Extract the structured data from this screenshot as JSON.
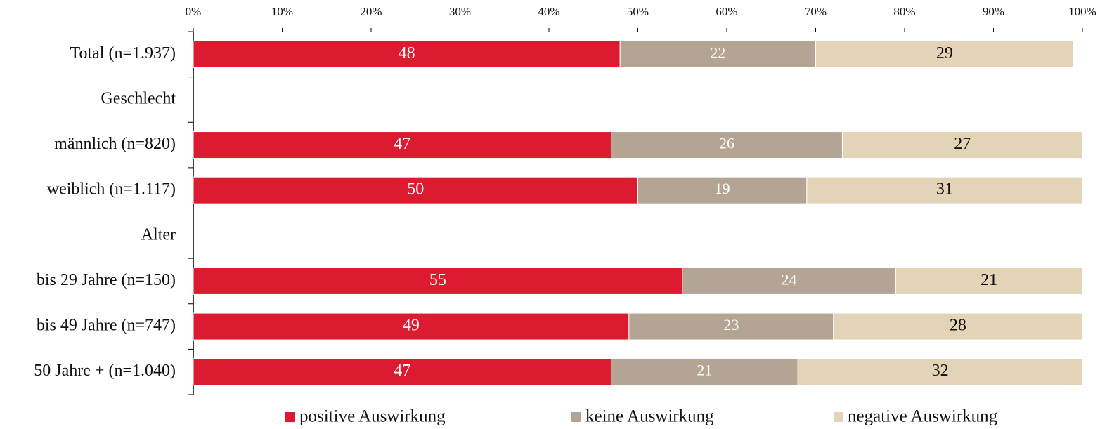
{
  "chart_data": {
    "type": "stacked-bar-horizontal",
    "categories": [
      "Total (n=1.937)",
      "Geschlecht",
      "männlich (n=820)",
      "weiblich (n=1.117)",
      "Alter",
      "bis 29 Jahre (n=150)",
      "bis 49 Jahre (n=747)",
      "50 Jahre + (n=1.040)"
    ],
    "series": [
      {
        "name": "positive Auswirkung",
        "color": "#dc1a30",
        "values": [
          48,
          null,
          47,
          50,
          null,
          55,
          49,
          47
        ]
      },
      {
        "name": "keine Auswirkung",
        "color": "#b3a494",
        "values": [
          22,
          null,
          26,
          19,
          null,
          24,
          23,
          21
        ]
      },
      {
        "name": "negative Auswirkung",
        "color": "#e3d3b7",
        "values": [
          29,
          null,
          27,
          31,
          null,
          21,
          28,
          32
        ]
      }
    ],
    "xlim": [
      0,
      100
    ],
    "xticks": [
      {
        "value": 0,
        "label": "0%"
      },
      {
        "value": 10,
        "label": "10%"
      },
      {
        "value": 20,
        "label": "20%"
      },
      {
        "value": 30,
        "label": "30%"
      },
      {
        "value": 40,
        "label": "40%"
      },
      {
        "value": 50,
        "label": "50%"
      },
      {
        "value": 60,
        "label": "60%"
      },
      {
        "value": 70,
        "label": "70%"
      },
      {
        "value": 80,
        "label": "80%"
      },
      {
        "value": 90,
        "label": "90%"
      },
      {
        "value": 100,
        "label": "100%"
      }
    ],
    "legend": "bottom"
  }
}
